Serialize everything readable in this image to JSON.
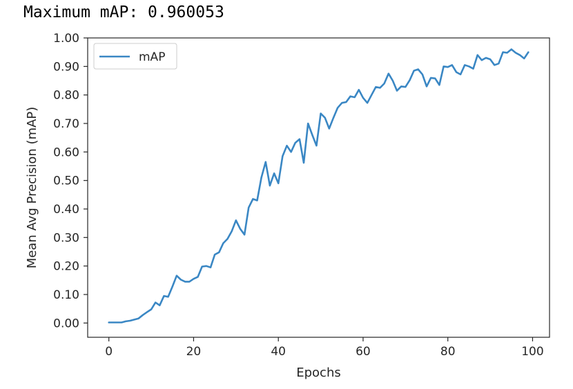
{
  "output": {
    "text": "Maximum mAP: 0.960053"
  },
  "colors": {
    "series": "#3a87c4",
    "axis": "#262626",
    "legend_border": "#cccccc"
  },
  "chart_data": {
    "type": "line",
    "title": "",
    "xlabel": "Epochs",
    "ylabel": "Mean Avg Precision (mAP)",
    "xlim": [
      -5,
      104
    ],
    "ylim": [
      -0.05,
      1.0
    ],
    "grid": false,
    "legend_position": "upper-left",
    "xticks": [
      0,
      20,
      40,
      60,
      80,
      100
    ],
    "xtick_labels": [
      "0",
      "20",
      "40",
      "60",
      "80",
      "100"
    ],
    "yticks": [
      0.0,
      0.1,
      0.2,
      0.3,
      0.4,
      0.5,
      0.6,
      0.7,
      0.8,
      0.9,
      1.0
    ],
    "ytick_labels": [
      "0.00",
      "0.10",
      "0.20",
      "0.30",
      "0.40",
      "0.50",
      "0.60",
      "0.70",
      "0.80",
      "0.90",
      "1.00"
    ],
    "series": [
      {
        "name": "mAP",
        "x": [
          0,
          1,
          2,
          3,
          4,
          5,
          6,
          7,
          8,
          9,
          10,
          11,
          12,
          13,
          14,
          15,
          16,
          17,
          18,
          19,
          20,
          21,
          22,
          23,
          24,
          25,
          26,
          27,
          28,
          29,
          30,
          31,
          32,
          33,
          34,
          35,
          36,
          37,
          38,
          39,
          40,
          41,
          42,
          43,
          44,
          45,
          46,
          47,
          48,
          49,
          50,
          51,
          52,
          53,
          54,
          55,
          56,
          57,
          58,
          59,
          60,
          61,
          62,
          63,
          64,
          65,
          66,
          67,
          68,
          69,
          70,
          71,
          72,
          73,
          74,
          75,
          76,
          77,
          78,
          79,
          80,
          81,
          82,
          83,
          84,
          85,
          86,
          87,
          88,
          89,
          90,
          91,
          92,
          93,
          94,
          95,
          96,
          97,
          98,
          99
        ],
        "y": [
          0.002,
          0.002,
          0.002,
          0.002,
          0.006,
          0.008,
          0.012,
          0.016,
          0.028,
          0.038,
          0.048,
          0.072,
          0.062,
          0.095,
          0.092,
          0.128,
          0.166,
          0.152,
          0.145,
          0.145,
          0.155,
          0.162,
          0.198,
          0.2,
          0.195,
          0.24,
          0.248,
          0.28,
          0.295,
          0.322,
          0.36,
          0.33,
          0.31,
          0.405,
          0.435,
          0.43,
          0.51,
          0.565,
          0.482,
          0.525,
          0.49,
          0.585,
          0.622,
          0.6,
          0.632,
          0.645,
          0.562,
          0.7,
          0.66,
          0.622,
          0.735,
          0.72,
          0.682,
          0.72,
          0.755,
          0.772,
          0.775,
          0.795,
          0.792,
          0.818,
          0.79,
          0.772,
          0.8,
          0.828,
          0.825,
          0.84,
          0.875,
          0.85,
          0.815,
          0.83,
          0.828,
          0.852,
          0.885,
          0.89,
          0.872,
          0.83,
          0.86,
          0.858,
          0.835,
          0.9,
          0.898,
          0.905,
          0.88,
          0.872,
          0.905,
          0.9,
          0.892,
          0.94,
          0.922,
          0.93,
          0.925,
          0.905,
          0.91,
          0.95,
          0.948,
          0.96,
          0.948,
          0.94,
          0.928,
          0.95
        ]
      }
    ]
  }
}
